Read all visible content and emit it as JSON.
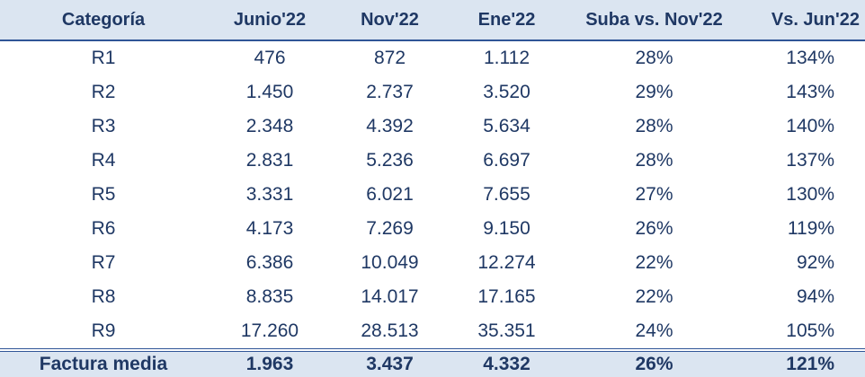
{
  "table": {
    "header": [
      "Categoría",
      "Junio'22",
      "Nov'22",
      "Ene'22",
      "Suba vs. Nov'22",
      "Vs. Jun'22"
    ],
    "rows": [
      [
        "R1",
        "476",
        "872",
        "1.112",
        "28%",
        "134%"
      ],
      [
        "R2",
        "1.450",
        "2.737",
        "3.520",
        "29%",
        "143%"
      ],
      [
        "R3",
        "2.348",
        "4.392",
        "5.634",
        "28%",
        "140%"
      ],
      [
        "R4",
        "2.831",
        "5.236",
        "6.697",
        "28%",
        "137%"
      ],
      [
        "R5",
        "3.331",
        "6.021",
        "7.655",
        "27%",
        "130%"
      ],
      [
        "R6",
        "4.173",
        "7.269",
        "9.150",
        "26%",
        "119%"
      ],
      [
        "R7",
        "6.386",
        "10.049",
        "12.274",
        "22%",
        "92%"
      ],
      [
        "R8",
        "8.835",
        "14.017",
        "17.165",
        "22%",
        "94%"
      ],
      [
        "R9",
        "17.260",
        "28.513",
        "35.351",
        "24%",
        "105%"
      ]
    ],
    "footer": [
      "Factura media",
      "1.963",
      "3.437",
      "4.332",
      "26%",
      "121%"
    ]
  }
}
